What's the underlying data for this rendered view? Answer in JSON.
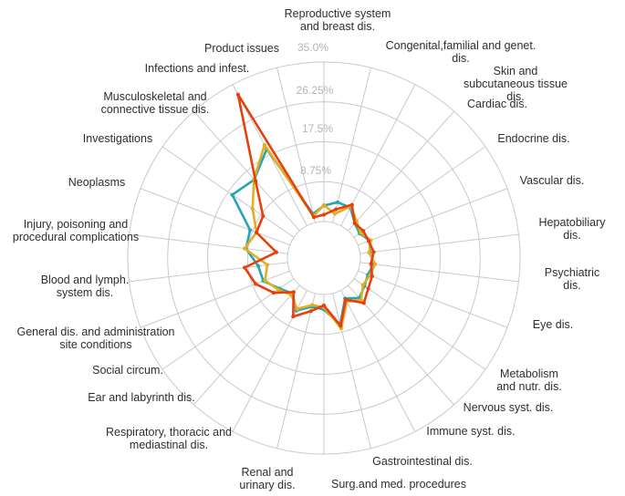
{
  "chart_data": {
    "type": "radar",
    "title": "",
    "rmin": 0,
    "rmax": 35,
    "grid": true,
    "legend": "none",
    "radial_tick_labels": [
      "35.0%",
      "26.25%",
      "17.5%",
      "8.75%"
    ],
    "radial_tick_values": [
      35,
      26.25,
      17.5,
      8.75
    ],
    "grid_color": "#c9c9c9",
    "category_label_color": "#2e2e2e",
    "tick_label_color": "#b3b3b3",
    "categories": [
      "Reproductive system\nand breast dis.",
      "Congenital,familial and genet. dis.",
      "Skin and subcutaneous tissue dis.",
      "Cardiac dis.",
      "Endocrine dis.",
      "Vascular dis.",
      "Hepatobiliary dis.",
      "Psychiatric dis.",
      "Eye dis.",
      "Metabolism\nand nutr. dis.",
      "Nervous syst. dis.",
      "Immune syst. dis.",
      "Gastrointestinal dis.",
      "Surg.and med. procedures",
      "Renal and\nurinary dis.",
      "Respiratory, thoracic and\nmediastinal dis.",
      "Ear and labyrinth dis.",
      "Social circum.",
      "General dis. and administration\nsite conditions",
      "Blood and lymph.\nsystem dis.",
      "Injury, poisoning and\nprocedural complications",
      "Neoplasms",
      "Investigations",
      "Musculoskeletal and\nconnective tissue dis.",
      "Infections and infest.",
      "Product issues"
    ],
    "series": [
      {
        "id": "teal",
        "color": "#26a4b2",
        "values": [
          3.5,
          4.6,
          4.5,
          2.2,
          1.5,
          2.8,
          2.2,
          3.0,
          2.3,
          2.8,
          3.7,
          2.0,
          7.0,
          3.3,
          3.0,
          5.0,
          2.4,
          3.8,
          6.2,
          6.5,
          9.2,
          9.3,
          16.4,
          15.0,
          19.0,
          2.0
        ]
      },
      {
        "id": "gold",
        "color": "#e3ae1f",
        "values": [
          3.6,
          2.0,
          4.8,
          2.8,
          1.8,
          3.0,
          2.0,
          3.3,
          2.8,
          2.4,
          4.3,
          2.8,
          7.9,
          2.8,
          2.6,
          4.6,
          2.8,
          4.2,
          5.8,
          4.5,
          9.5,
          7.8,
          11.0,
          15.1,
          20.0,
          1.5
        ]
      },
      {
        "id": "red",
        "color": "#e6400f",
        "values": [
          1.5,
          3.0,
          5.2,
          2.2,
          2.5,
          2.5,
          3.0,
          2.4,
          3.3,
          3.8,
          5.2,
          2.3,
          7.3,
          2.4,
          4.0,
          6.5,
          2.0,
          5.4,
          8.0,
          9.5,
          2.5,
          7.8,
          8.2,
          14.6,
          32.5,
          1.2
        ]
      }
    ]
  }
}
